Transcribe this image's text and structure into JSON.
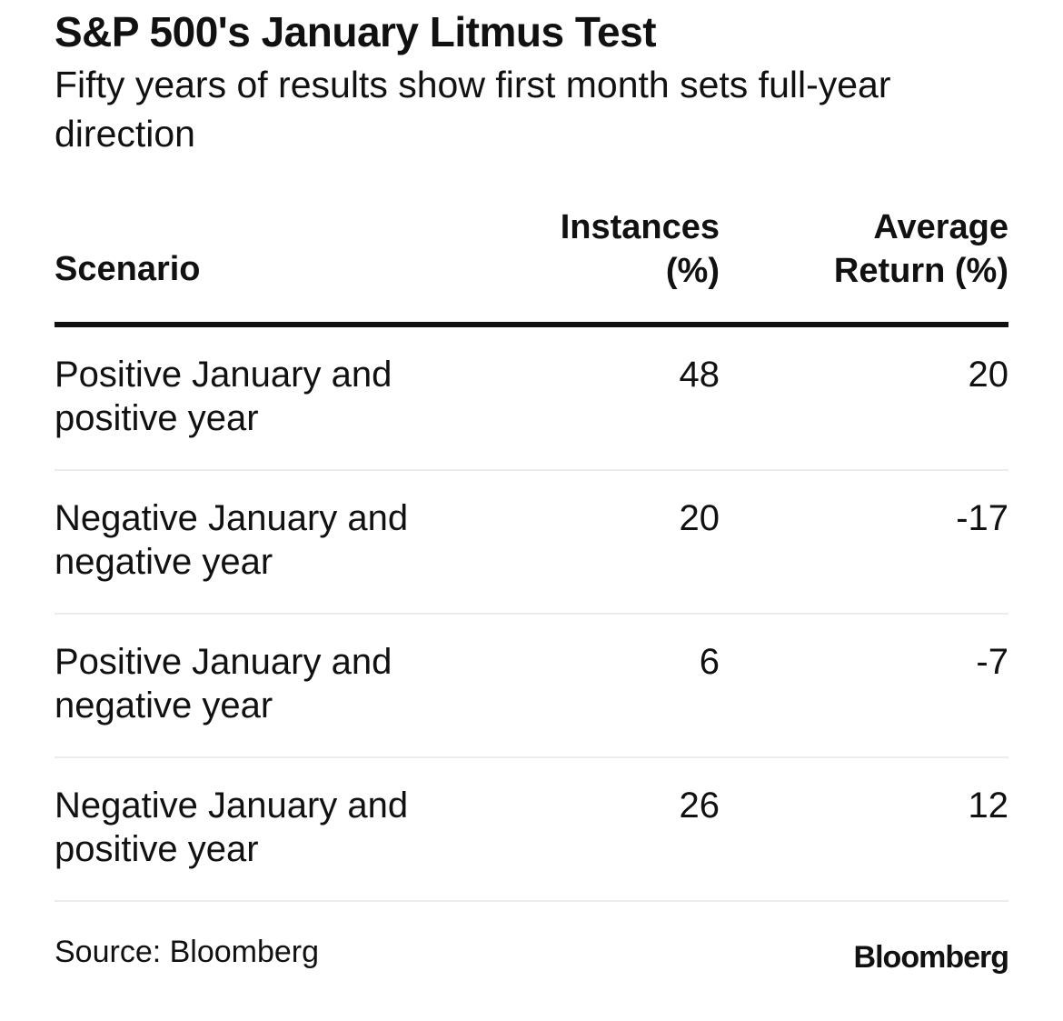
{
  "chart_data": {
    "type": "table",
    "title": "S&P 500's January Litmus Test",
    "subtitle": "Fifty years of results show first month sets full-year direction",
    "columns": [
      "Scenario",
      "Instances (%)",
      "Average Return (%)"
    ],
    "rows": [
      {
        "scenario": "Positive January and positive year",
        "instances": "48",
        "average_return": "20"
      },
      {
        "scenario": "Negative January and negative year",
        "instances": "20",
        "average_return": "-17"
      },
      {
        "scenario": "Positive January and negative year",
        "instances": "6",
        "average_return": "-7"
      },
      {
        "scenario": "Negative January and positive year",
        "instances": "26",
        "average_return": "12"
      }
    ]
  },
  "header": {
    "col_scenario": "Scenario",
    "col_instances_line1": "Instances",
    "col_instances_line2": "(%)",
    "col_return_line1": "Average",
    "col_return_line2": "Return (%)"
  },
  "footer": {
    "source": "Source: Bloomberg",
    "logo": "Bloomberg"
  }
}
